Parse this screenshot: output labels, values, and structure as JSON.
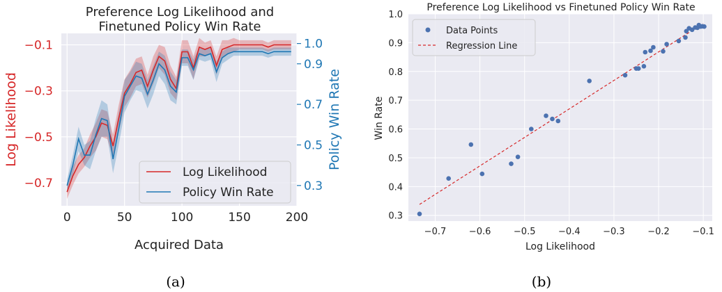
{
  "captions": [
    "(a)",
    "(b)"
  ],
  "colors": {
    "red": "#d62728",
    "blue": "#1f77b4",
    "scatter": "#4c72b0",
    "grid_bg": "#eaeaf2",
    "axis_text": "#333333"
  },
  "chart_data": [
    {
      "type": "line",
      "title": "Preference Log Likelihood and\nFinetuned Policy Win Rate",
      "title_lines": [
        "Preference Log Likelihood and",
        "Finetuned Policy Win Rate"
      ],
      "xlabel": "Acquired Data",
      "ylabel_left": "Log Likelihood",
      "ylabel_right": "Policy Win Rate",
      "xlim": [
        -5,
        200
      ],
      "ylim_left": [
        -0.8,
        -0.05
      ],
      "ylim_right": [
        0.2,
        1.05
      ],
      "xticks": [
        0,
        50,
        100,
        150,
        200
      ],
      "yticks_left": [
        -0.1,
        -0.3,
        -0.5,
        -0.7
      ],
      "yticks_right": [
        1.0,
        0.9,
        0.7,
        0.5,
        0.3
      ],
      "grid": true,
      "legend_position": "lower-right",
      "x": [
        0,
        5,
        10,
        15,
        20,
        25,
        30,
        35,
        40,
        45,
        50,
        55,
        60,
        65,
        70,
        75,
        80,
        85,
        90,
        95,
        100,
        105,
        110,
        115,
        120,
        125,
        130,
        135,
        140,
        145,
        150,
        155,
        160,
        165,
        170,
        175,
        180,
        185,
        190,
        195
      ],
      "series": [
        {
          "name": "Log Likelihood",
          "axis": "left",
          "color": "#d62728",
          "values": [
            -0.74,
            -0.67,
            -0.62,
            -0.59,
            -0.54,
            -0.5,
            -0.44,
            -0.45,
            -0.54,
            -0.42,
            -0.31,
            -0.27,
            -0.22,
            -0.21,
            -0.28,
            -0.21,
            -0.15,
            -0.17,
            -0.25,
            -0.29,
            -0.13,
            -0.13,
            -0.2,
            -0.11,
            -0.12,
            -0.11,
            -0.19,
            -0.12,
            -0.11,
            -0.1,
            -0.1,
            -0.1,
            -0.1,
            -0.1,
            -0.1,
            -0.11,
            -0.1,
            -0.1,
            -0.1,
            -0.1
          ],
          "lower": [
            -0.77,
            -0.71,
            -0.66,
            -0.63,
            -0.59,
            -0.56,
            -0.5,
            -0.51,
            -0.59,
            -0.48,
            -0.37,
            -0.33,
            -0.28,
            -0.27,
            -0.33,
            -0.27,
            -0.2,
            -0.23,
            -0.31,
            -0.34,
            -0.18,
            -0.18,
            -0.25,
            -0.15,
            -0.15,
            -0.14,
            -0.23,
            -0.16,
            -0.14,
            -0.13,
            -0.12,
            -0.12,
            -0.12,
            -0.12,
            -0.12,
            -0.13,
            -0.12,
            -0.12,
            -0.12,
            -0.12
          ],
          "upper": [
            -0.71,
            -0.63,
            -0.58,
            -0.55,
            -0.49,
            -0.44,
            -0.38,
            -0.39,
            -0.49,
            -0.36,
            -0.25,
            -0.21,
            -0.16,
            -0.15,
            -0.23,
            -0.15,
            -0.1,
            -0.11,
            -0.19,
            -0.24,
            -0.08,
            -0.08,
            -0.15,
            -0.07,
            -0.09,
            -0.08,
            -0.15,
            -0.08,
            -0.08,
            -0.07,
            -0.08,
            -0.08,
            -0.08,
            -0.08,
            -0.08,
            -0.09,
            -0.08,
            -0.08,
            -0.08,
            -0.08
          ]
        },
        {
          "name": "Policy Win Rate",
          "axis": "right",
          "color": "#1f77b4",
          "values": [
            0.3,
            0.4,
            0.53,
            0.45,
            0.45,
            0.55,
            0.63,
            0.62,
            0.43,
            0.58,
            0.74,
            0.79,
            0.84,
            0.83,
            0.75,
            0.82,
            0.9,
            0.87,
            0.79,
            0.76,
            0.93,
            0.93,
            0.87,
            0.95,
            0.94,
            0.95,
            0.86,
            0.93,
            0.95,
            0.96,
            0.96,
            0.96,
            0.96,
            0.96,
            0.96,
            0.95,
            0.96,
            0.96,
            0.96,
            0.96
          ],
          "lower": [
            0.27,
            0.35,
            0.47,
            0.4,
            0.38,
            0.47,
            0.54,
            0.54,
            0.36,
            0.5,
            0.66,
            0.72,
            0.77,
            0.76,
            0.68,
            0.75,
            0.84,
            0.8,
            0.72,
            0.7,
            0.89,
            0.89,
            0.82,
            0.92,
            0.91,
            0.92,
            0.81,
            0.9,
            0.92,
            0.94,
            0.94,
            0.94,
            0.94,
            0.94,
            0.94,
            0.93,
            0.94,
            0.94,
            0.94,
            0.94
          ],
          "upper": [
            0.33,
            0.45,
            0.59,
            0.5,
            0.52,
            0.63,
            0.72,
            0.7,
            0.5,
            0.66,
            0.82,
            0.86,
            0.91,
            0.9,
            0.82,
            0.89,
            0.96,
            0.94,
            0.86,
            0.82,
            0.97,
            0.97,
            0.92,
            0.98,
            0.97,
            0.98,
            0.91,
            0.96,
            0.98,
            0.98,
            0.98,
            0.98,
            0.98,
            0.98,
            0.98,
            0.97,
            0.98,
            0.98,
            0.98,
            0.98
          ]
        }
      ]
    },
    {
      "type": "scatter",
      "title": "Preference Log Likelihood vs Finetuned Policy Win Rate",
      "xlabel": "Log Likelihood",
      "ylabel": "Win Rate",
      "xlim": [
        -0.76,
        -0.08
      ],
      "ylim": [
        0.28,
        1.0
      ],
      "xticks": [
        -0.7,
        -0.6,
        -0.5,
        -0.4,
        -0.3,
        -0.2,
        -0.1
      ],
      "yticks": [
        0.3,
        0.4,
        0.5,
        0.6,
        0.7,
        0.8,
        0.9,
        1.0
      ],
      "grid": true,
      "legend_position": "top-left",
      "series": [
        {
          "name": "Data Points",
          "color": "#4c72b0",
          "points": [
            [
              -0.735,
              0.305
            ],
            [
              -0.67,
              0.428
            ],
            [
              -0.62,
              0.546
            ],
            [
              -0.595,
              0.444
            ],
            [
              -0.53,
              0.479
            ],
            [
              -0.515,
              0.503
            ],
            [
              -0.485,
              0.6
            ],
            [
              -0.452,
              0.646
            ],
            [
              -0.438,
              0.635
            ],
            [
              -0.425,
              0.628
            ],
            [
              -0.355,
              0.767
            ],
            [
              -0.275,
              0.787
            ],
            [
              -0.25,
              0.81
            ],
            [
              -0.245,
              0.81
            ],
            [
              -0.233,
              0.818
            ],
            [
              -0.23,
              0.867
            ],
            [
              -0.218,
              0.872
            ],
            [
              -0.212,
              0.884
            ],
            [
              -0.19,
              0.87
            ],
            [
              -0.182,
              0.895
            ],
            [
              -0.155,
              0.906
            ],
            [
              -0.14,
              0.918
            ],
            [
              -0.138,
              0.94
            ],
            [
              -0.132,
              0.95
            ],
            [
              -0.125,
              0.945
            ],
            [
              -0.118,
              0.953
            ],
            [
              -0.113,
              0.952
            ],
            [
              -0.11,
              0.961
            ],
            [
              -0.106,
              0.956
            ],
            [
              -0.102,
              0.957
            ],
            [
              -0.098,
              0.956
            ]
          ]
        },
        {
          "name": "Regression Line",
          "color": "#d62728",
          "line": [
            [
              -0.735,
              0.338
            ],
            [
              -0.1,
              0.967
            ]
          ]
        }
      ]
    }
  ]
}
